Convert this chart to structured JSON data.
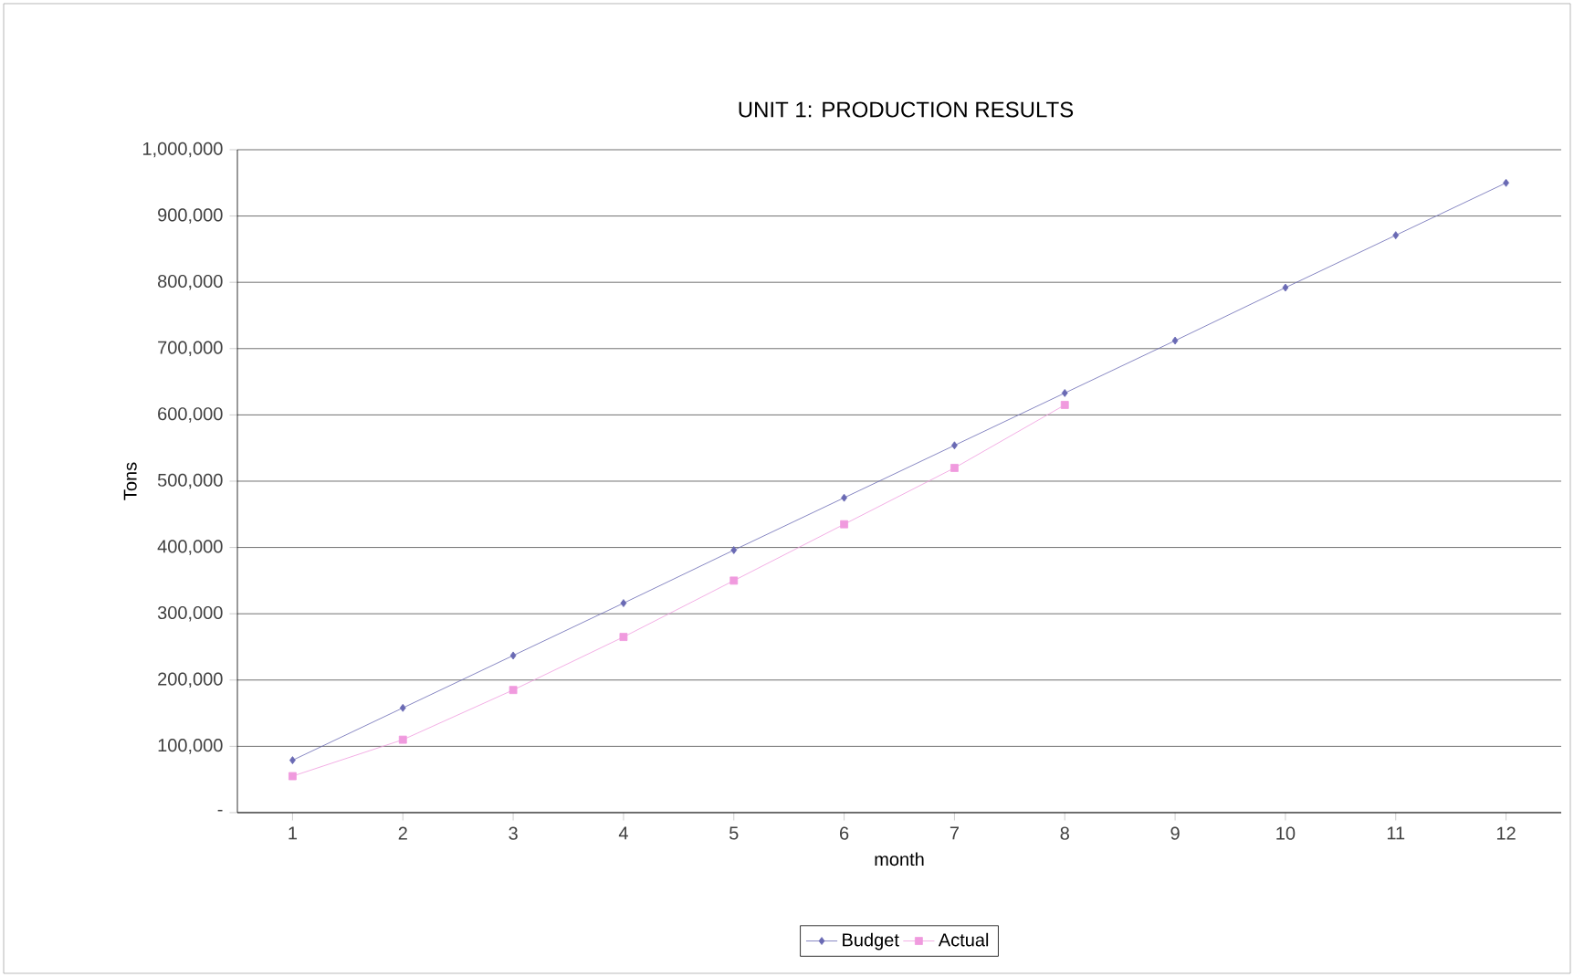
{
  "chart_data": {
    "type": "line",
    "title": "UNIT 1: PRODUCTION RESULTS",
    "xlabel": "month",
    "ylabel": "Tons",
    "categories": [
      "1",
      "2",
      "3",
      "4",
      "5",
      "6",
      "7",
      "8",
      "9",
      "10",
      "11",
      "12"
    ],
    "series": [
      {
        "name": "Budget",
        "color": "#6a6ab4",
        "marker": "diamond",
        "values": [
          79000,
          158000,
          237000,
          316000,
          396000,
          475000,
          554000,
          633000,
          712000,
          792000,
          871000,
          950000
        ]
      },
      {
        "name": "Actual",
        "color": "#f09ade",
        "marker": "square",
        "values": [
          55000,
          110000,
          185000,
          265000,
          350000,
          435000,
          520000,
          615000,
          null,
          null,
          null,
          null
        ]
      }
    ],
    "ylim": [
      0,
      1000000
    ],
    "yticks": [
      {
        "value": 0,
        "label": "-"
      },
      {
        "value": 100000,
        "label": "100,000"
      },
      {
        "value": 200000,
        "label": "200,000"
      },
      {
        "value": 300000,
        "label": "300,000"
      },
      {
        "value": 400000,
        "label": "400,000"
      },
      {
        "value": 500000,
        "label": "500,000"
      },
      {
        "value": 600000,
        "label": "600,000"
      },
      {
        "value": 700000,
        "label": "700,000"
      },
      {
        "value": 800000,
        "label": "800,000"
      },
      {
        "value": 900000,
        "label": "900,000"
      },
      {
        "value": 1000000,
        "label": "1,000,000"
      }
    ],
    "grid": "y",
    "legend": "bottom",
    "line_style": "solid"
  }
}
